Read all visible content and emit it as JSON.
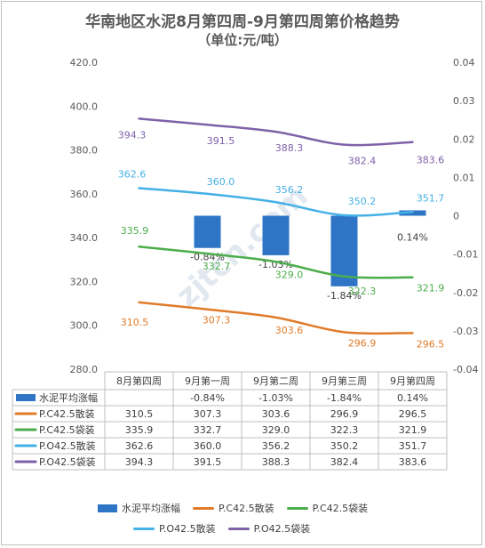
{
  "header": {
    "title": "华南地区水泥8月第四周-9月第四周第价格趋势",
    "subtitle": "（单位:元/吨）"
  },
  "watermark": "zjtcn.com",
  "chart_data": {
    "type": "bar+line",
    "title": "华南地区水泥8月第四周-9月第四周第价格趋势",
    "subtitle": "（单位:元/吨）",
    "categories": [
      "8月第四周",
      "9月第一周",
      "9月第二周",
      "9月第三周",
      "9月第四周"
    ],
    "y_left": {
      "range": [
        280,
        420
      ],
      "ticks": [
        "420.0",
        "400.0",
        "380.0",
        "360.0",
        "340.0",
        "320.0",
        "300.0",
        "280.0"
      ]
    },
    "y_right": {
      "range": [
        -0.04,
        0.04
      ],
      "ticks": [
        "0.04",
        "0.03",
        "0.02",
        "0.01",
        "0",
        "-0.01",
        "-0.02",
        "-0.03",
        "-0.04"
      ]
    },
    "bar_series": {
      "name": "水泥平均涨幅",
      "color": "#2e75c5",
      "values": [
        null,
        -0.0084,
        -0.0103,
        -0.0184,
        0.0014
      ],
      "labels": [
        "",
        "-0.84%",
        "-1.03%",
        "-1.84%",
        "0.14%"
      ]
    },
    "series": [
      {
        "name": "P.C42.5散装",
        "color": "#e07b2a",
        "values": [
          310.5,
          307.3,
          303.6,
          296.9,
          296.5
        ],
        "labels": [
          "310.5",
          "307.3",
          "303.6",
          "296.9",
          "296.5"
        ]
      },
      {
        "name": "P.C42.5袋装",
        "color": "#4cad4c",
        "values": [
          335.9,
          332.7,
          329.0,
          322.3,
          321.9
        ],
        "labels": [
          "335.9",
          "332.7",
          "329.0",
          "322.3",
          "321.9"
        ]
      },
      {
        "name": "P.O42.5散装",
        "color": "#45b0e6",
        "values": [
          362.6,
          360.0,
          356.2,
          350.2,
          351.7
        ],
        "labels": [
          "362.6",
          "360.0",
          "356.2",
          "350.2",
          "351.7"
        ]
      },
      {
        "name": "P.O42.5袋装",
        "color": "#7e62a8",
        "values": [
          394.3,
          391.5,
          388.3,
          382.4,
          383.6
        ],
        "labels": [
          "394.3",
          "391.5",
          "388.3",
          "382.4",
          "383.6"
        ]
      }
    ],
    "table": {
      "rows": [
        {
          "name": "水泥平均涨幅",
          "cells": [
            "",
            "-0.84%",
            "-1.03%",
            "-1.84%",
            "0.14%"
          ]
        },
        {
          "name": "P.C42.5散装",
          "cells": [
            "310.5",
            "307.3",
            "303.6",
            "296.9",
            "296.5"
          ]
        },
        {
          "name": "P.C42.5袋装",
          "cells": [
            "335.9",
            "332.7",
            "329.0",
            "322.3",
            "321.9"
          ]
        },
        {
          "name": "P.O42.5散装",
          "cells": [
            "362.6",
            "360.0",
            "356.2",
            "350.2",
            "351.7"
          ]
        },
        {
          "name": "P.O42.5袋装",
          "cells": [
            "394.3",
            "391.5",
            "388.3",
            "382.4",
            "383.6"
          ]
        }
      ]
    },
    "legend_position": "bottom",
    "grid": false
  }
}
